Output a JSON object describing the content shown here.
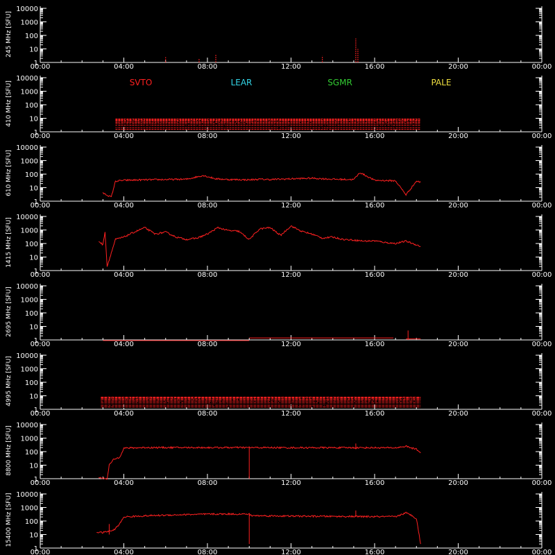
{
  "colors": {
    "background": "#000000",
    "axes": "#ffffff",
    "data": "#ff2020",
    "svto": "#ff2020",
    "lear": "#33d6e8",
    "sgmr": "#33cc33",
    "pale": "#f0e040"
  },
  "chart_data": {
    "type": "line",
    "x_tick_labels": [
      "00:00",
      "04:00",
      "08:00",
      "12:00",
      "16:00",
      "20:00",
      "00:00"
    ],
    "x_range_hours": [
      0,
      24
    ],
    "y_scale": "log",
    "y_tick_labels": [
      "1",
      "10",
      "100",
      "1000",
      "10000"
    ],
    "ylim": [
      1,
      10000
    ],
    "legend": [
      {
        "label": "SVTO",
        "color": "#ff2020"
      },
      {
        "label": "LEAR",
        "color": "#33d6e8"
      },
      {
        "label": "SGMR",
        "color": "#33cc33"
      },
      {
        "label": "PALE",
        "color": "#f0e040"
      }
    ],
    "panels": [
      {
        "ylabel": "245 MHz [SFU]",
        "kind": "spikes",
        "spikes": [
          [
            6.0,
            1.0,
            2.5
          ],
          [
            7.6,
            1.0,
            2.0
          ],
          [
            8.4,
            1.0,
            4.0
          ],
          [
            13.5,
            1.0,
            3.0
          ],
          [
            15.1,
            1.0,
            60
          ],
          [
            15.2,
            1.0,
            10
          ]
        ]
      },
      {
        "ylabel": "410 MHz [SFU]",
        "kind": "band",
        "start": 3.6,
        "end": 18.2,
        "band": [
          1.5,
          9
        ],
        "sparse": true
      },
      {
        "ylabel": "610 MHz [SFU]",
        "kind": "series",
        "x": [
          3.0,
          3.4,
          3.6,
          4.0,
          5.0,
          6.0,
          7.0,
          7.8,
          8.4,
          9.0,
          10.0,
          10.5,
          11.0,
          12.0,
          13.0,
          14.0,
          15.0,
          15.3,
          16.0,
          17.0,
          17.5,
          18.0,
          18.2
        ],
        "y": [
          4,
          2,
          30,
          35,
          38,
          40,
          42,
          80,
          45,
          40,
          38,
          42,
          40,
          45,
          50,
          42,
          40,
          130,
          35,
          32,
          3,
          30,
          25
        ]
      },
      {
        "ylabel": "1415 MHz [SFU]",
        "kind": "series",
        "x": [
          2.8,
          3.0,
          3.1,
          3.2,
          3.6,
          4.0,
          4.5,
          5.0,
          5.5,
          6.0,
          6.5,
          7.0,
          7.5,
          8.0,
          8.5,
          9.0,
          9.5,
          10.0,
          10.5,
          11.0,
          11.5,
          12.0,
          12.5,
          13.0,
          13.5,
          14.0,
          14.5,
          15.0,
          15.5,
          16.0,
          16.5,
          17.0,
          17.5,
          18.0,
          18.2
        ],
        "y": [
          150,
          80,
          800,
          2,
          200,
          300,
          700,
          1500,
          500,
          700,
          300,
          200,
          250,
          500,
          1500,
          900,
          800,
          200,
          1200,
          1500,
          400,
          2000,
          800,
          500,
          250,
          300,
          200,
          180,
          150,
          160,
          120,
          100,
          150,
          80,
          60
        ]
      },
      {
        "ylabel": "2695 MHz [SFU]",
        "kind": "segments",
        "segments": [
          [
            3.0,
            10.0,
            0.9
          ],
          [
            10.0,
            16.9,
            1.4
          ],
          [
            17.5,
            18.2,
            1.2
          ]
        ],
        "spikes": [
          [
            17.6,
            1.0,
            5
          ]
        ]
      },
      {
        "ylabel": "4995 MHz [SFU]",
        "kind": "band",
        "start": 2.9,
        "end": 18.2,
        "band": [
          1.5,
          8
        ],
        "sparse": false
      },
      {
        "ylabel": "8800 MHz [SFU]",
        "kind": "series",
        "x": [
          2.8,
          3.2,
          3.3,
          3.5,
          3.8,
          4.0,
          5.0,
          6.0,
          8.0,
          10.0,
          12.0,
          14.0,
          15.0,
          16.0,
          17.0,
          17.5,
          17.8,
          18.0,
          18.2
        ],
        "y": [
          1.2,
          1.0,
          10,
          25,
          40,
          180,
          200,
          200,
          200,
          200,
          195,
          195,
          195,
          195,
          190,
          250,
          180,
          150,
          80
        ],
        "spikes": [
          [
            10.0,
            1.0,
            200
          ],
          [
            15.1,
            150,
            400
          ]
        ]
      },
      {
        "ylabel": "15400 MHz [SFU]",
        "kind": "series",
        "x": [
          2.7,
          3.0,
          3.3,
          3.5,
          3.8,
          4.0,
          5.0,
          6.0,
          7.0,
          8.0,
          9.0,
          10.0,
          10.1,
          12.0,
          14.0,
          16.0,
          17.0,
          17.5,
          17.8,
          18.0,
          18.2
        ],
        "y": [
          15,
          14,
          18,
          20,
          60,
          200,
          240,
          270,
          300,
          320,
          330,
          320,
          250,
          230,
          220,
          210,
          210,
          400,
          250,
          150,
          2
        ],
        "spikes": [
          [
            10.0,
            2.0,
            300
          ],
          [
            15.1,
            200,
            600
          ],
          [
            3.3,
            10,
            60
          ]
        ]
      }
    ]
  }
}
